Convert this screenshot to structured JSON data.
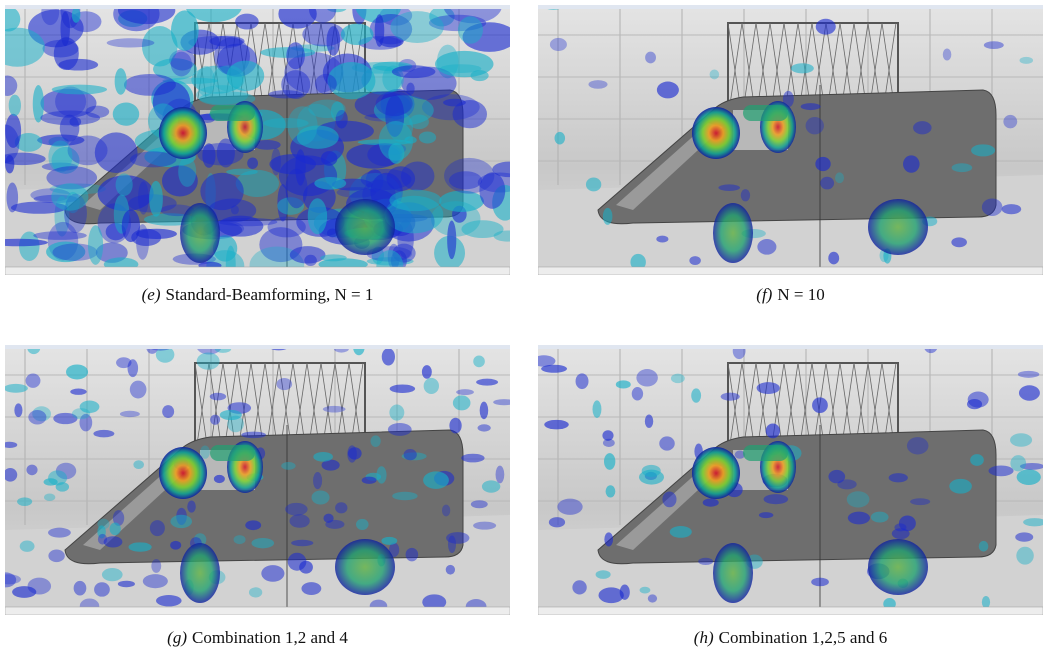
{
  "figures": [
    {
      "label": "(e)",
      "caption": "Standard-Beamforming, N = 1"
    },
    {
      "label": "(f)",
      "caption": "N = 10"
    },
    {
      "label": "(g)",
      "caption": "Combination 1,2 and 4"
    },
    {
      "label": "(h)",
      "caption": "Combination 1,2,5 and 6"
    }
  ]
}
